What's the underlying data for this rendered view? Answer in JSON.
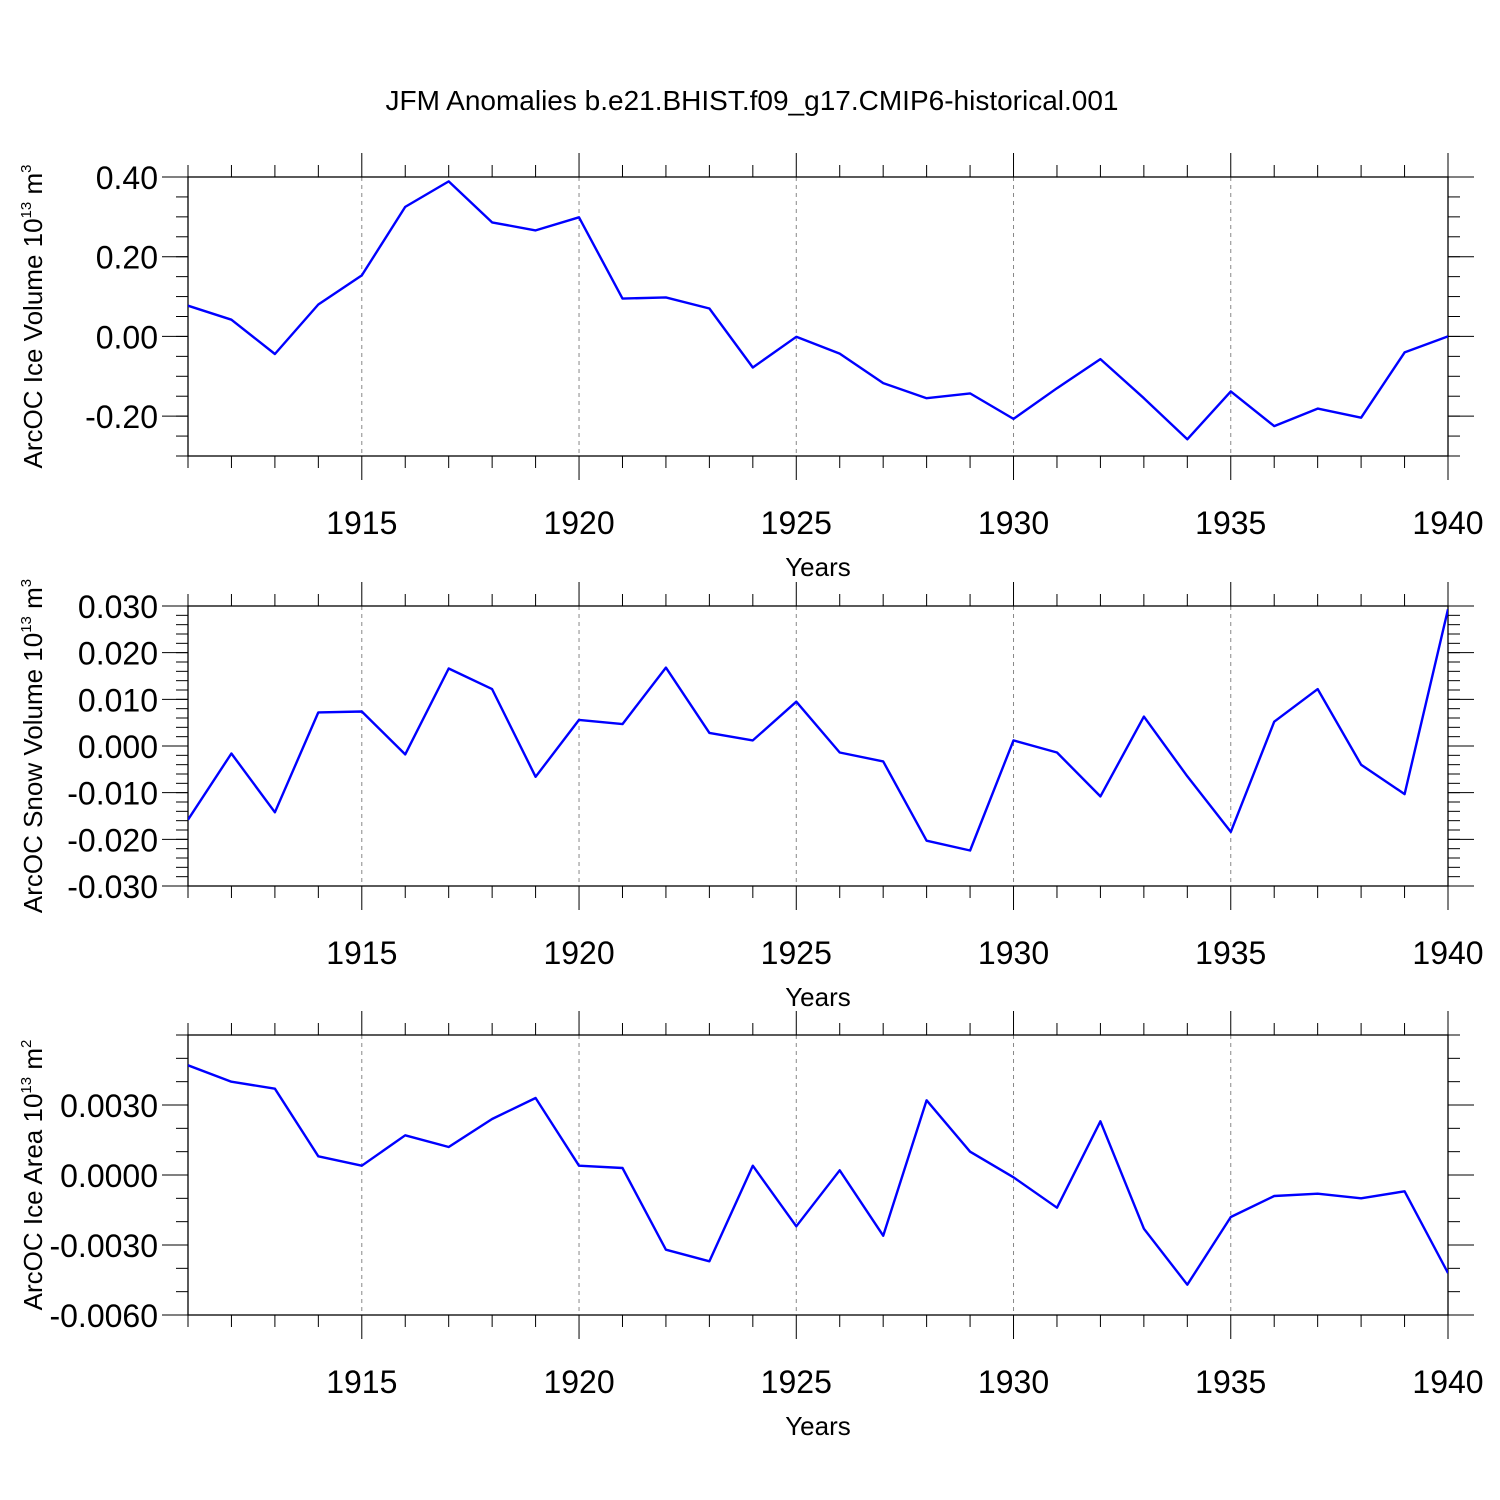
{
  "title": "JFM Anomalies b.e21.BHIST.f09_g17.CMIP6-historical.001",
  "colors": {
    "line": "#0000ff",
    "axis": "#000000",
    "grid": "#888888"
  },
  "chart_data": [
    {
      "type": "line",
      "ylabel": "ArcOC Ice Volume 10",
      "ylabel_exponent": "13",
      "ylabel_unit": "m",
      "ylabel_unit_exponent": "3",
      "xlabel": "Years",
      "xlim": [
        1911,
        1940
      ],
      "ylim": [
        -0.3,
        0.4
      ],
      "x_ticks": [
        1915,
        1920,
        1925,
        1930,
        1935,
        1940
      ],
      "x_tick_labels": [
        "1915",
        "1920",
        "1925",
        "1930",
        "1935",
        "1940"
      ],
      "y_ticks": [
        -0.2,
        0.0,
        0.2,
        0.4
      ],
      "y_tick_labels": [
        "-0.20",
        "0.00",
        "0.20",
        "0.40"
      ],
      "y_minor_step": 0.05,
      "grid": "vertical dashed at major x ticks",
      "series": [
        {
          "name": "ArcOC Ice Volume",
          "x": [
            1911,
            1912,
            1913,
            1914,
            1915,
            1916,
            1917,
            1918,
            1919,
            1920,
            1921,
            1922,
            1923,
            1924,
            1925,
            1926,
            1927,
            1928,
            1929,
            1930,
            1931,
            1932,
            1933,
            1934,
            1935,
            1936,
            1937,
            1938,
            1939,
            1940
          ],
          "values": [
            0.077,
            0.042,
            -0.044,
            0.08,
            0.153,
            0.325,
            0.389,
            0.286,
            0.266,
            0.299,
            0.095,
            0.098,
            0.07,
            -0.078,
            -0.001,
            -0.043,
            -0.117,
            -0.155,
            -0.143,
            -0.207,
            -0.13,
            -0.057,
            -0.155,
            -0.258,
            -0.138,
            -0.225,
            -0.181,
            -0.204,
            -0.04,
            0.0
          ]
        }
      ]
    },
    {
      "type": "line",
      "ylabel": "ArcOC Snow Volume 10",
      "ylabel_exponent": "13",
      "ylabel_unit": "m",
      "ylabel_unit_exponent": "3",
      "xlabel": "Years",
      "xlim": [
        1911,
        1940
      ],
      "ylim": [
        -0.03,
        0.03
      ],
      "x_ticks": [
        1915,
        1920,
        1925,
        1930,
        1935,
        1940
      ],
      "x_tick_labels": [
        "1915",
        "1920",
        "1925",
        "1930",
        "1935",
        "1940"
      ],
      "y_ticks": [
        -0.03,
        -0.02,
        -0.01,
        0.0,
        0.01,
        0.02,
        0.03
      ],
      "y_tick_labels": [
        "-0.030",
        "-0.020",
        "-0.010",
        "0.000",
        "0.010",
        "0.020",
        "0.030"
      ],
      "y_minor_step": 0.002,
      "grid": "vertical dashed at major x ticks",
      "series": [
        {
          "name": "ArcOC Snow Volume",
          "x": [
            1911,
            1912,
            1913,
            1914,
            1915,
            1916,
            1917,
            1918,
            1919,
            1920,
            1921,
            1922,
            1923,
            1924,
            1925,
            1926,
            1927,
            1928,
            1929,
            1930,
            1931,
            1932,
            1933,
            1934,
            1935,
            1936,
            1937,
            1938,
            1939,
            1940
          ],
          "values": [
            -0.0158,
            -0.0016,
            -0.0142,
            0.0072,
            0.0074,
            -0.0018,
            0.0166,
            0.0122,
            -0.0066,
            0.0056,
            0.0047,
            0.0168,
            0.0028,
            0.0012,
            0.0095,
            -0.0014,
            -0.0033,
            -0.0203,
            -0.0224,
            0.0012,
            -0.0014,
            -0.0108,
            0.0063,
            -0.0065,
            -0.0184,
            0.0052,
            0.0122,
            -0.004,
            -0.0103,
            0.0293
          ]
        }
      ]
    },
    {
      "type": "line",
      "ylabel": "ArcOC Ice Area 10",
      "ylabel_exponent": "13",
      "ylabel_unit": "m",
      "ylabel_unit_exponent": "2",
      "xlabel": "Years",
      "xlim": [
        1911,
        1940
      ],
      "ylim": [
        -0.006,
        0.006
      ],
      "x_ticks": [
        1915,
        1920,
        1925,
        1930,
        1935,
        1940
      ],
      "x_tick_labels": [
        "1915",
        "1920",
        "1925",
        "1930",
        "1935",
        "1940"
      ],
      "y_ticks": [
        -0.006,
        -0.003,
        0.0,
        0.003
      ],
      "y_tick_labels": [
        "-0.0060",
        "-0.0030",
        "0.0000",
        "0.0030"
      ],
      "y_minor_step": 0.001,
      "grid": "vertical dashed at major x ticks",
      "series": [
        {
          "name": "ArcOC Ice Area",
          "x": [
            1911,
            1912,
            1913,
            1914,
            1915,
            1916,
            1917,
            1918,
            1919,
            1920,
            1921,
            1922,
            1923,
            1924,
            1925,
            1926,
            1927,
            1928,
            1929,
            1930,
            1931,
            1932,
            1933,
            1934,
            1935,
            1936,
            1937,
            1938,
            1939,
            1940
          ],
          "values": [
            0.0047,
            0.004,
            0.0037,
            0.0008,
            0.0004,
            0.0017,
            0.0012,
            0.0024,
            0.0033,
            0.0004,
            0.0003,
            -0.0032,
            -0.0037,
            0.0004,
            -0.0022,
            0.0002,
            -0.0026,
            0.0032,
            0.001,
            -0.0001,
            -0.0014,
            0.0023,
            -0.0023,
            -0.0047,
            -0.0018,
            -0.0009,
            -0.0008,
            -0.001,
            -0.0007,
            -0.0042
          ]
        }
      ]
    }
  ]
}
